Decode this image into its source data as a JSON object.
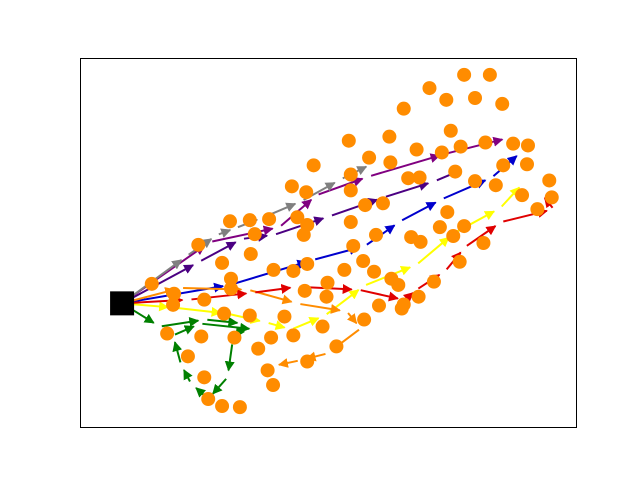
{
  "chart_data": {
    "type": "scatter",
    "title": "",
    "xlabel": "",
    "ylabel": "",
    "xlim": [
      0,
      100
    ],
    "ylim": [
      0,
      100
    ],
    "axis_ticks": false,
    "grid": false,
    "depot": {
      "x": 8.3,
      "y": 33.6,
      "color": "#000000",
      "marker": "square"
    },
    "nodes_color": "#ff8c00",
    "nodes": [
      [
        82.6,
        95.7
      ],
      [
        77.4,
        95.7
      ],
      [
        79.6,
        89.4
      ],
      [
        73.8,
        88.9
      ],
      [
        70.4,
        92.1
      ],
      [
        85.1,
        87.8
      ],
      [
        65.2,
        86.5
      ],
      [
        74.7,
        80.5
      ],
      [
        62.3,
        78.9
      ],
      [
        54.1,
        77.8
      ],
      [
        81.7,
        77.3
      ],
      [
        90.3,
        76.5
      ],
      [
        87.3,
        77.0
      ],
      [
        76.7,
        76.2
      ],
      [
        72.9,
        74.6
      ],
      [
        67.8,
        75.4
      ],
      [
        58.2,
        73.2
      ],
      [
        62.5,
        71.9
      ],
      [
        47.0,
        71.1
      ],
      [
        85.3,
        71.1
      ],
      [
        90.1,
        71.4
      ],
      [
        54.5,
        68.6
      ],
      [
        79.6,
        66.8
      ],
      [
        75.6,
        69.4
      ],
      [
        68.4,
        67.8
      ],
      [
        66.1,
        67.6
      ],
      [
        42.6,
        65.4
      ],
      [
        45.5,
        63.8
      ],
      [
        54.5,
        64.3
      ],
      [
        94.6,
        67.0
      ],
      [
        83.8,
        65.7
      ],
      [
        89.1,
        63.0
      ],
      [
        95.1,
        62.4
      ],
      [
        61.0,
        60.8
      ],
      [
        57.4,
        60.3
      ],
      [
        92.2,
        59.2
      ],
      [
        74.0,
        58.4
      ],
      [
        43.7,
        57.0
      ],
      [
        30.1,
        55.9
      ],
      [
        34.1,
        56.2
      ],
      [
        38.0,
        56.5
      ],
      [
        54.5,
        55.7
      ],
      [
        45.7,
        54.9
      ],
      [
        72.5,
        54.3
      ],
      [
        77.4,
        54.6
      ],
      [
        75.2,
        51.9
      ],
      [
        35.1,
        52.4
      ],
      [
        45.0,
        52.2
      ],
      [
        59.6,
        52.2
      ],
      [
        66.7,
        51.6
      ],
      [
        81.3,
        50.0
      ],
      [
        55.0,
        49.2
      ],
      [
        23.7,
        49.5
      ],
      [
        34.3,
        47.0
      ],
      [
        68.6,
        50.3
      ],
      [
        28.5,
        44.6
      ],
      [
        45.7,
        44.3
      ],
      [
        57.0,
        45.1
      ],
      [
        76.5,
        44.9
      ],
      [
        38.9,
        42.7
      ],
      [
        42.9,
        42.4
      ],
      [
        53.2,
        42.7
      ],
      [
        59.2,
        42.2
      ],
      [
        30.3,
        40.3
      ],
      [
        49.8,
        39.2
      ],
      [
        62.7,
        40.3
      ],
      [
        71.3,
        39.5
      ],
      [
        14.3,
        38.9
      ],
      [
        30.3,
        37.6
      ],
      [
        45.2,
        37.0
      ],
      [
        64.1,
        38.6
      ],
      [
        18.8,
        36.2
      ],
      [
        24.9,
        34.6
      ],
      [
        49.6,
        35.4
      ],
      [
        60.2,
        33.0
      ],
      [
        64.8,
        32.2
      ],
      [
        18.6,
        33.2
      ],
      [
        28.9,
        30.8
      ],
      [
        57.2,
        29.2
      ],
      [
        34.1,
        30.3
      ],
      [
        48.8,
        27.3
      ],
      [
        41.1,
        30.0
      ],
      [
        17.4,
        25.4
      ],
      [
        24.3,
        24.6
      ],
      [
        31.0,
        24.3
      ],
      [
        38.4,
        24.3
      ],
      [
        42.9,
        24.9
      ],
      [
        35.8,
        21.3
      ],
      [
        51.6,
        21.9
      ],
      [
        45.7,
        17.8
      ],
      [
        21.6,
        19.2
      ],
      [
        37.7,
        15.4
      ],
      [
        24.9,
        13.5
      ],
      [
        38.8,
        11.4
      ],
      [
        25.7,
        7.6
      ],
      [
        28.5,
        5.7
      ],
      [
        32.1,
        5.4
      ],
      [
        65.2,
        33.3
      ],
      [
        68.2,
        35.4
      ]
    ],
    "routes": [
      {
        "color": "#800080",
        "points": [
          [
            8.3,
            33.6
          ],
          [
            26.1,
            50.3
          ],
          [
            40.1,
            54.3
          ],
          [
            47.6,
            63.0
          ],
          [
            58.2,
            68.1
          ],
          [
            73.8,
            74.3
          ],
          [
            86.5,
            78.6
          ]
        ]
      },
      {
        "color": "#4b0082",
        "points": [
          [
            8.3,
            33.6
          ],
          [
            23.9,
            44.9
          ],
          [
            32.5,
            51.1
          ],
          [
            39.0,
            52.2
          ],
          [
            50.3,
            57.3
          ],
          [
            61.2,
            62.4
          ],
          [
            71.5,
            66.8
          ],
          [
            78.0,
            70.5
          ]
        ]
      },
      {
        "color": "#808080",
        "points": [
          [
            8.3,
            33.6
          ],
          [
            21.4,
            46.5
          ],
          [
            27.5,
            52.2
          ],
          [
            31.3,
            54.1
          ],
          [
            36.9,
            57.0
          ],
          [
            44.6,
            61.4
          ],
          [
            52.5,
            67.3
          ],
          [
            58.9,
            71.6
          ]
        ]
      },
      {
        "color": "#0000cd",
        "points": [
          [
            8.3,
            33.6
          ],
          [
            30.1,
            38.6
          ],
          [
            46.9,
            45.4
          ],
          [
            57.4,
            49.2
          ],
          [
            64.5,
            55.9
          ],
          [
            72.9,
            61.9
          ],
          [
            83.0,
            67.8
          ],
          [
            89.1,
            74.9
          ]
        ]
      },
      {
        "color": "#ffff00",
        "points": [
          [
            8.3,
            33.6
          ],
          [
            19.0,
            32.4
          ],
          [
            29.6,
            30.8
          ],
          [
            37.5,
            28.4
          ],
          [
            42.5,
            26.5
          ],
          [
            49.3,
            30.3
          ],
          [
            57.2,
            38.4
          ],
          [
            67.8,
            44.1
          ],
          [
            75.4,
            52.7
          ],
          [
            84.7,
            59.5
          ],
          [
            89.5,
            66.5
          ]
        ]
      },
      {
        "color": "#ff8c00",
        "points": [
          [
            8.3,
            33.6
          ],
          [
            20.2,
            37.8
          ],
          [
            33.8,
            37.3
          ],
          [
            43.9,
            33.5
          ],
          [
            53.7,
            31.4
          ],
          [
            56.5,
            26.8
          ],
          [
            49.8,
            20.0
          ],
          [
            44.2,
            18.1
          ],
          [
            38.6,
            16.5
          ]
        ]
      },
      {
        "color": "#e00000",
        "points": [
          [
            8.3,
            33.6
          ],
          [
            21.9,
            34.6
          ],
          [
            34.8,
            36.5
          ],
          [
            43.7,
            38.1
          ],
          [
            56.1,
            37.3
          ],
          [
            65.4,
            34.5
          ],
          [
            67.8,
            37.3
          ],
          [
            73.6,
            42.4
          ],
          [
            77.6,
            48.9
          ],
          [
            84.9,
            55.7
          ],
          [
            95.5,
            59.2
          ],
          [
            92.9,
            63.5
          ]
        ]
      },
      {
        "color": "#008000",
        "points": [
          [
            8.3,
            33.6
          ],
          [
            15.9,
            27.3
          ],
          [
            25.1,
            29.2
          ],
          [
            33.0,
            28.1
          ],
          [
            30.6,
            23.0
          ],
          [
            29.6,
            13.5
          ],
          [
            25.7,
            7.6
          ],
          [
            22.2,
            11.9
          ],
          [
            20.2,
            17.0
          ],
          [
            18.6,
            24.9
          ],
          [
            24.1,
            28.1
          ],
          [
            35.4,
            26.5
          ]
        ]
      }
    ]
  }
}
